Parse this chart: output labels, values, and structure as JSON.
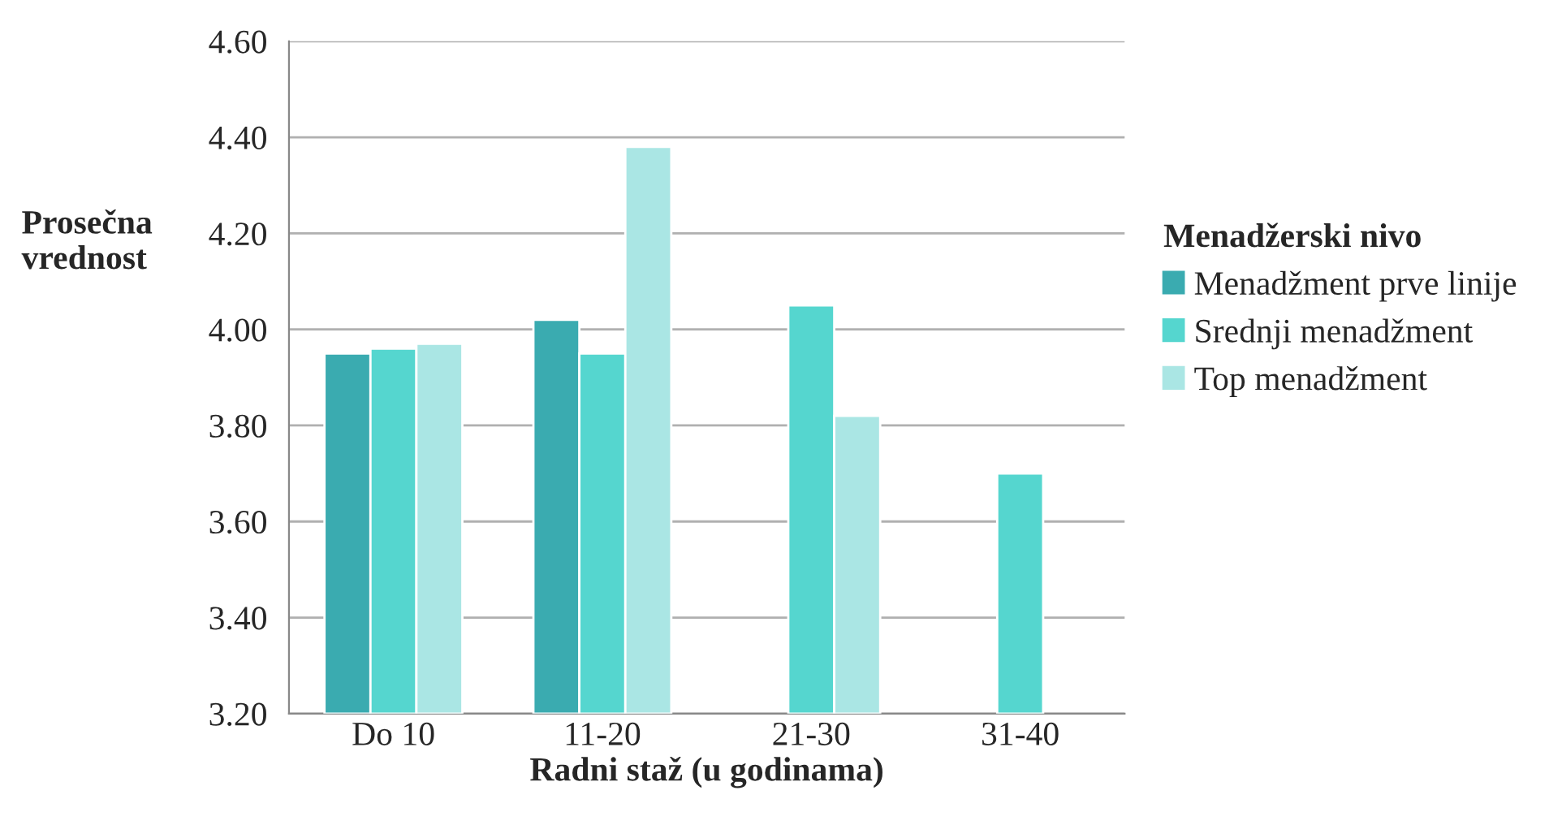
{
  "chart_data": {
    "type": "bar",
    "categories": [
      "Do 10",
      "11-20",
      "21-30",
      "31-40"
    ],
    "series": [
      {
        "name": "Menadžment prve linije",
        "color": "#3aabb0",
        "values": [
          3.95,
          4.02,
          null,
          null
        ]
      },
      {
        "name": "Srednji menadžment",
        "color": "#55d6cf",
        "values": [
          3.96,
          3.95,
          4.05,
          3.7
        ]
      },
      {
        "name": "Top menadžment",
        "color": "#aae6e4",
        "values": [
          3.97,
          4.38,
          3.82,
          null
        ]
      }
    ],
    "xlabel": "Radni staž (u godinama)",
    "ylabel": "Prosečna\nvrednost",
    "legend_title": "Menadžerski nivo",
    "ylim": [
      3.2,
      4.6
    ],
    "yticks": [
      {
        "value": 3.2,
        "label": "3.20"
      },
      {
        "value": 3.4,
        "label": "3.40"
      },
      {
        "value": 3.6,
        "label": "3.60"
      },
      {
        "value": 3.8,
        "label": "3.80"
      },
      {
        "value": 4.0,
        "label": "4.00"
      },
      {
        "value": 4.2,
        "label": "4.20"
      },
      {
        "value": 4.4,
        "label": "4.40"
      },
      {
        "value": 4.6,
        "label": "4.60"
      }
    ],
    "grid": "y",
    "legend": "right"
  }
}
